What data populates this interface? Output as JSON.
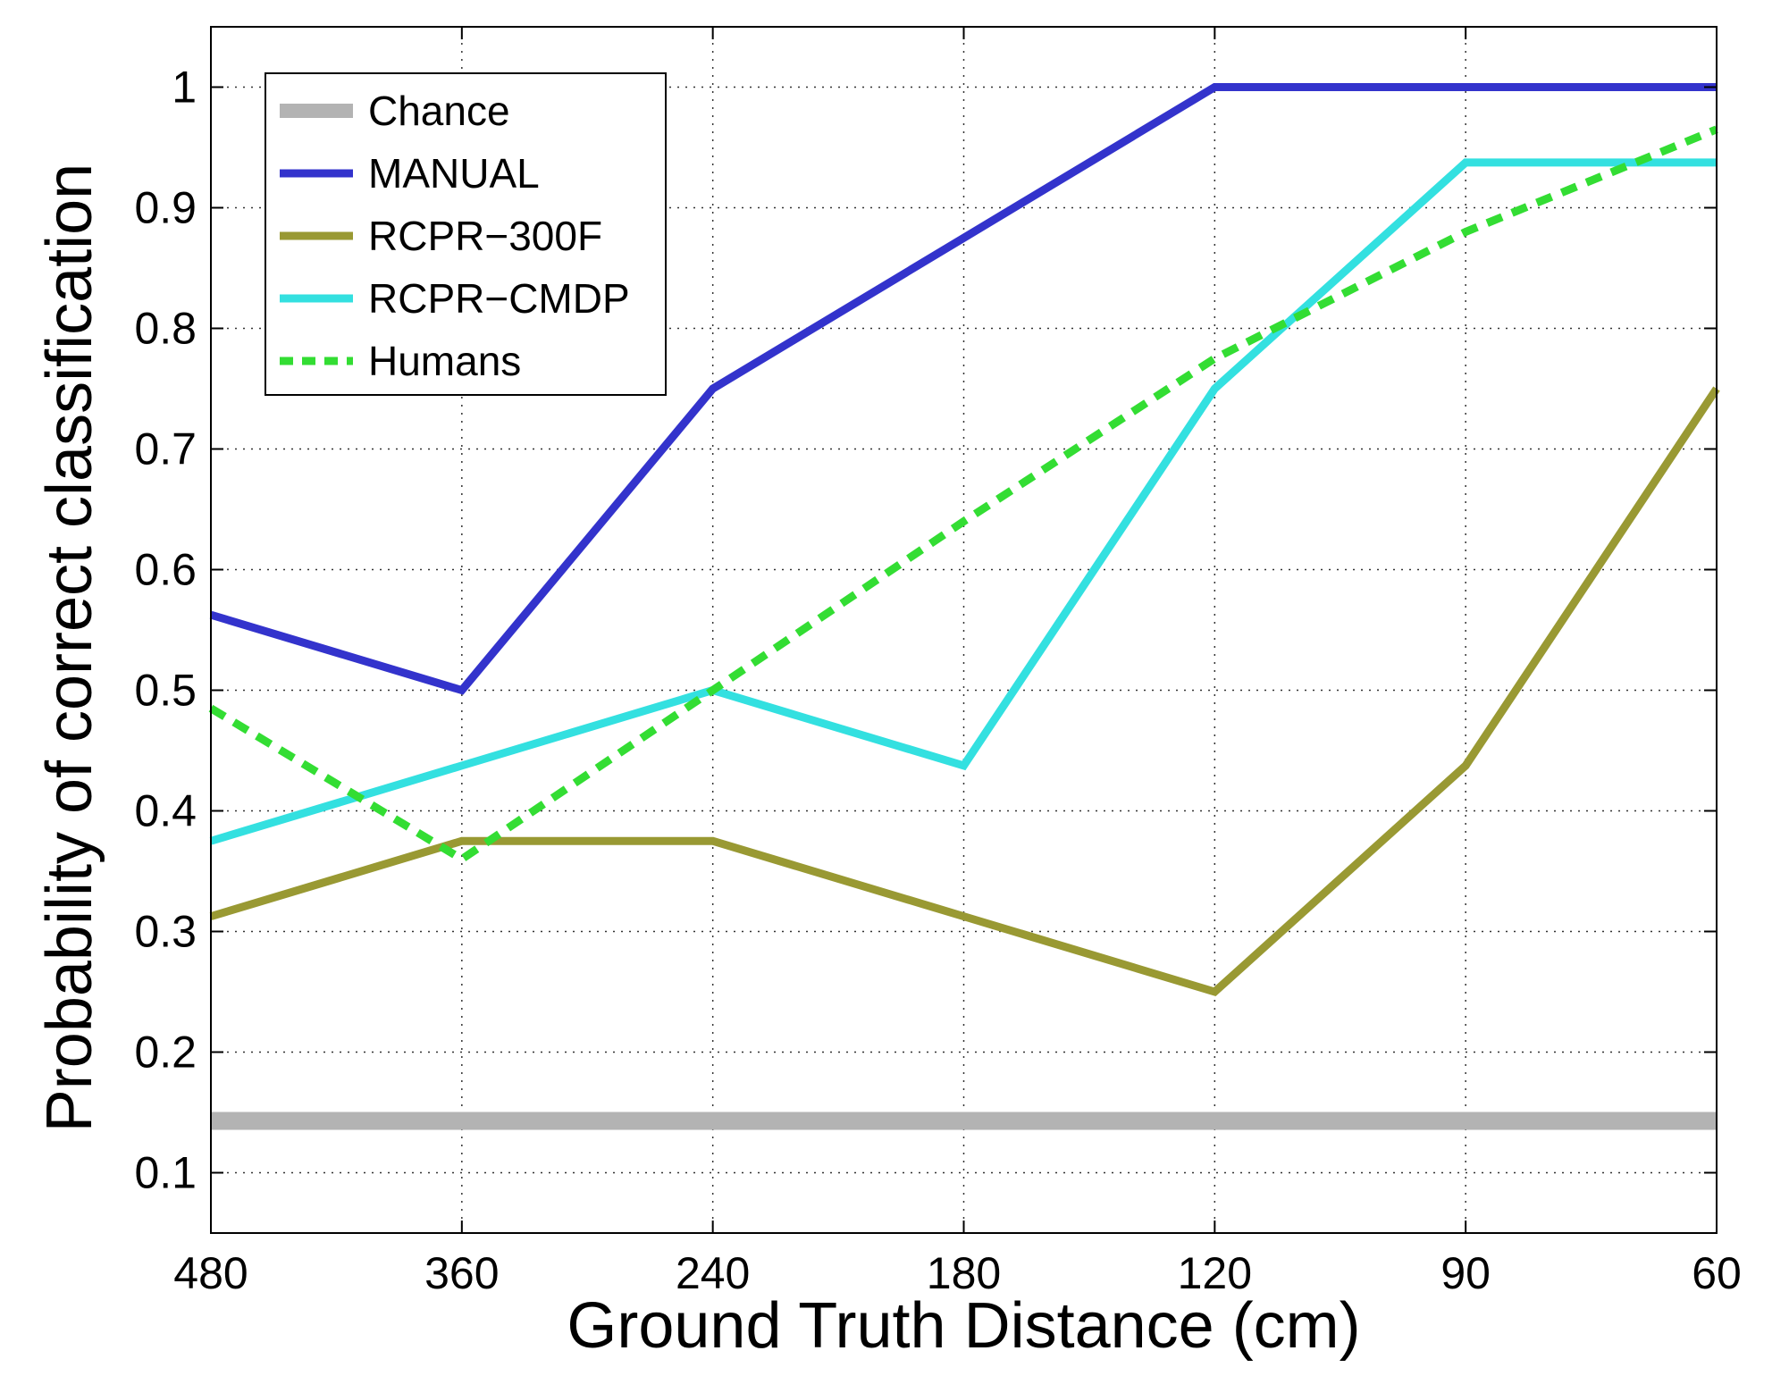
{
  "chart_data": {
    "type": "line",
    "title": "",
    "xlabel": "Ground Truth Distance (cm)",
    "ylabel": "Probability of correct classification",
    "categories": [
      "480",
      "360",
      "240",
      "180",
      "120",
      "90",
      "60"
    ],
    "ylim": [
      0.05,
      1.05
    ],
    "yticks": [
      0.1,
      0.2,
      0.3,
      0.4,
      0.5,
      0.6,
      0.7,
      0.8,
      0.9,
      1
    ],
    "ytick_labels": [
      "0.1",
      "0.2",
      "0.3",
      "0.4",
      "0.5",
      "0.6",
      "0.7",
      "0.8",
      "0.9",
      "1"
    ],
    "grid": true,
    "legend_position": "top-left",
    "series": [
      {
        "name": "Chance",
        "color": "#b3b3b3",
        "style": "solid",
        "values": [
          0.143,
          0.143,
          0.143,
          0.143,
          0.143,
          0.143,
          0.143
        ]
      },
      {
        "name": "MANUAL",
        "color": "#3333cc",
        "style": "solid",
        "values": [
          0.5625,
          0.5,
          0.75,
          0.875,
          1.0,
          1.0,
          1.0
        ]
      },
      {
        "name": "RCPR−300F",
        "color": "#999933",
        "style": "solid",
        "values": [
          0.3125,
          0.375,
          0.375,
          0.3125,
          0.25,
          0.4375,
          0.75
        ]
      },
      {
        "name": "RCPR−CMDP",
        "color": "#33e0e0",
        "style": "solid",
        "values": [
          0.375,
          0.4375,
          0.5,
          0.4375,
          0.75,
          0.9375,
          0.9375
        ]
      },
      {
        "name": "Humans",
        "color": "#33dd33",
        "style": "dashed",
        "values": [
          0.485,
          0.36,
          0.5,
          0.64,
          0.775,
          0.88,
          0.965
        ]
      }
    ]
  }
}
